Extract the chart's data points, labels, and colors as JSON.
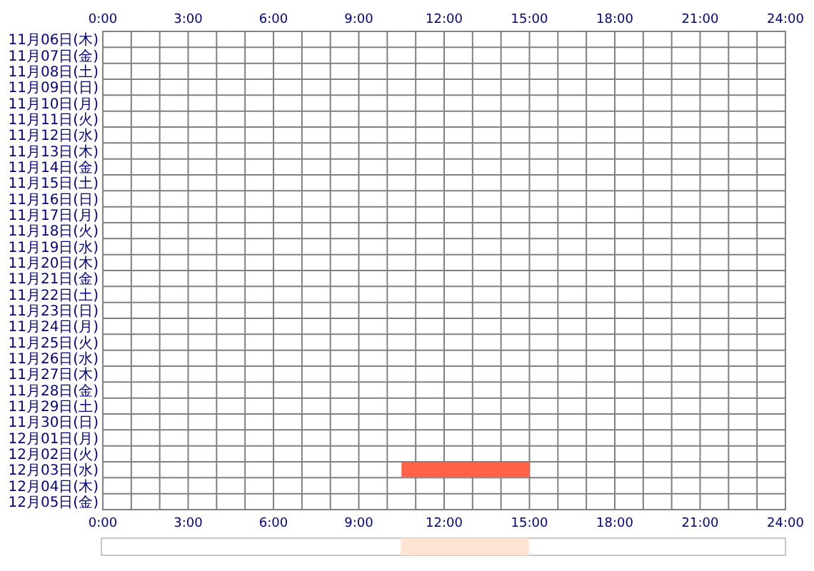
{
  "chart_data": [
    {
      "type": "bar",
      "orientation": "horizontal",
      "categories": [
        "11月06日(木)",
        "11月07日(金)",
        "11月08日(土)",
        "11月09日(日)",
        "11月10日(月)",
        "11月11日(火)",
        "11月12日(水)",
        "11月13日(木)",
        "11月14日(金)",
        "11月15日(土)",
        "11月16日(日)",
        "11月17日(月)",
        "11月18日(火)",
        "11月19日(水)",
        "11月20日(木)",
        "11月21日(金)",
        "11月22日(土)",
        "11月23日(日)",
        "11月24日(月)",
        "11月25日(火)",
        "11月26日(水)",
        "11月27日(木)",
        "11月28日(金)",
        "11月29日(土)",
        "11月30日(日)",
        "12月01日(月)",
        "12月02日(火)",
        "12月03日(水)",
        "12月04日(木)",
        "12月05日(金)"
      ],
      "base": [
        null,
        null,
        null,
        null,
        null,
        null,
        null,
        null,
        null,
        null,
        null,
        null,
        null,
        null,
        null,
        null,
        null,
        null,
        null,
        null,
        null,
        null,
        null,
        null,
        null,
        null,
        null,
        10.5,
        null,
        null
      ],
      "values": [
        null,
        null,
        null,
        null,
        null,
        null,
        null,
        null,
        null,
        null,
        null,
        null,
        null,
        null,
        null,
        null,
        null,
        null,
        null,
        null,
        null,
        null,
        null,
        null,
        null,
        null,
        null,
        4.5,
        null,
        null
      ],
      "color": "#ff6347",
      "xlim": [
        0,
        24
      ],
      "xticks": [
        {
          "value": 0,
          "label": "0:00"
        },
        {
          "value": 3,
          "label": "3:00"
        },
        {
          "value": 6,
          "label": "6:00"
        },
        {
          "value": 9,
          "label": "9:00"
        },
        {
          "value": 12,
          "label": "12:00"
        },
        {
          "value": 15,
          "label": "15:00"
        },
        {
          "value": 18,
          "label": "18:00"
        },
        {
          "value": 21,
          "label": "21:00"
        },
        {
          "value": 24,
          "label": "24:00"
        }
      ],
      "x2lim": [
        0,
        24
      ],
      "x2ticks": [
        {
          "value": 0,
          "label": "0:00"
        },
        {
          "value": 3,
          "label": "3:00"
        },
        {
          "value": 6,
          "label": "6:00"
        },
        {
          "value": 9,
          "label": "9:00"
        },
        {
          "value": 12,
          "label": "12:00"
        },
        {
          "value": 15,
          "label": "15:00"
        },
        {
          "value": 18,
          "label": "18:00"
        },
        {
          "value": 21,
          "label": "21:00"
        },
        {
          "value": 24,
          "label": "24:00"
        }
      ],
      "grid": true
    },
    {
      "type": "bar",
      "orientation": "horizontal",
      "categories": [
        null
      ],
      "base": [
        10.5
      ],
      "values": [
        4.5
      ],
      "color": "#ffe4d4",
      "xlim": [
        0,
        24
      ]
    }
  ]
}
